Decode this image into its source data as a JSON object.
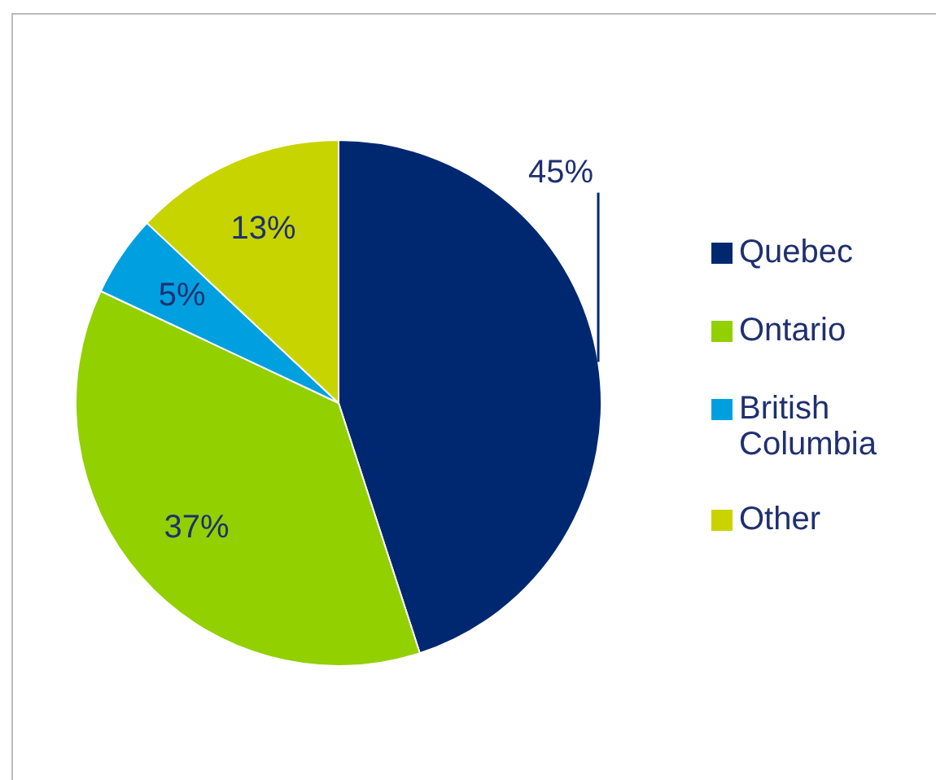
{
  "chart_data": {
    "type": "pie",
    "categories": [
      "Quebec",
      "Ontario",
      "British Columbia",
      "Other"
    ],
    "values": [
      45,
      37,
      5,
      13
    ],
    "colors": [
      "#002870",
      "#92d000",
      "#00a0e0",
      "#c8d400"
    ],
    "value_labels": [
      "45%",
      "37%",
      "5%",
      "13%"
    ],
    "legend": "right"
  }
}
